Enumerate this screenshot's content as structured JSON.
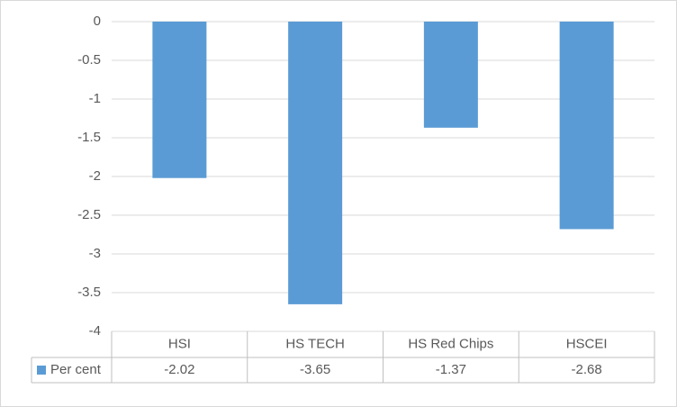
{
  "chart_data": {
    "type": "bar",
    "categories": [
      "HSI",
      "HS TECH",
      "HS Red Chips",
      "HSCEI"
    ],
    "series": [
      {
        "name": "Per cent",
        "color": "#5b9bd5",
        "values": [
          -2.02,
          -3.65,
          -1.37,
          -2.68
        ]
      }
    ],
    "ylim": [
      -4,
      0
    ],
    "yticks": [
      0,
      -0.5,
      -1,
      -1.5,
      -2,
      -2.5,
      -3,
      -3.5,
      -4
    ],
    "grid": true,
    "data_table": true
  }
}
